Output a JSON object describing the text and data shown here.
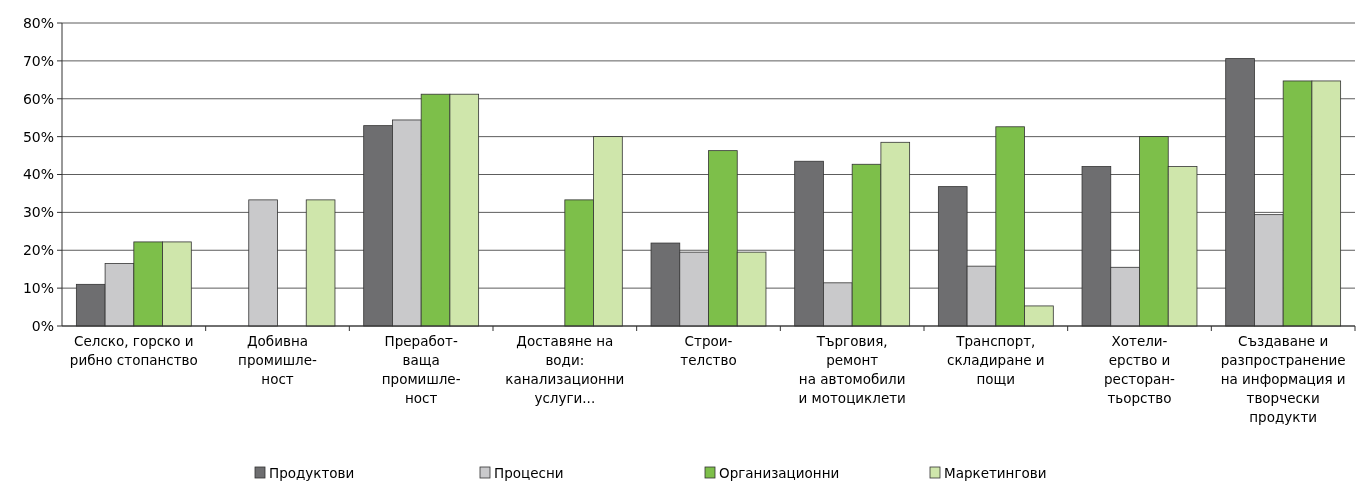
{
  "chart_data": {
    "type": "bar",
    "categories": [
      "Селско, горско и\nрибно стопанство",
      "Добивна\nпромишле-\nност",
      "Преработ-\nваща\nпромишле-\nност",
      "Доставяне на\nводи:\nканализационни\nуслуги...",
      "Строи-\nтелство",
      "Търговия,\nремонт\nна автомобили\nи мотоциклети",
      "Транспорт,\nскладиране и\nпощи",
      "Хотели-\nерство и\nресторан-\nтьорство",
      "Създаване и\nразпространение\nна информация и\nтворчески\nпродукти"
    ],
    "series": [
      {
        "name": "Продуктови",
        "color": "#6e6e70",
        "values": [
          11,
          0,
          52.9,
          0,
          21.9,
          43.5,
          36.8,
          42.1,
          70.6
        ]
      },
      {
        "name": "Процесни",
        "color": "#c9c9cb",
        "values": [
          16.5,
          33.3,
          54.4,
          0,
          19.5,
          11.4,
          15.8,
          15.5,
          29.4
        ]
      },
      {
        "name": "Организационни",
        "color": "#7dbf4a",
        "values": [
          22.2,
          0,
          61.2,
          33.3,
          46.3,
          42.7,
          52.6,
          50,
          64.7
        ]
      },
      {
        "name": "Маркетингови",
        "color": "#cfe6ab",
        "values": [
          22.2,
          33.3,
          61.2,
          50,
          19.5,
          48.5,
          5.3,
          42.1,
          64.7
        ]
      }
    ],
    "ylim": [
      0,
      80
    ],
    "yticks": [
      {
        "value": 0,
        "label": "0%"
      },
      {
        "value": 10,
        "label": "10%"
      },
      {
        "value": 20,
        "label": "20%"
      },
      {
        "value": 30,
        "label": "30%"
      },
      {
        "value": 40,
        "label": "40%"
      },
      {
        "value": 50,
        "label": "50%"
      },
      {
        "value": 60,
        "label": "60%"
      },
      {
        "value": 70,
        "label": "70%"
      },
      {
        "value": 80,
        "label": "80%"
      }
    ],
    "grid": "y",
    "legend": "bottom"
  }
}
